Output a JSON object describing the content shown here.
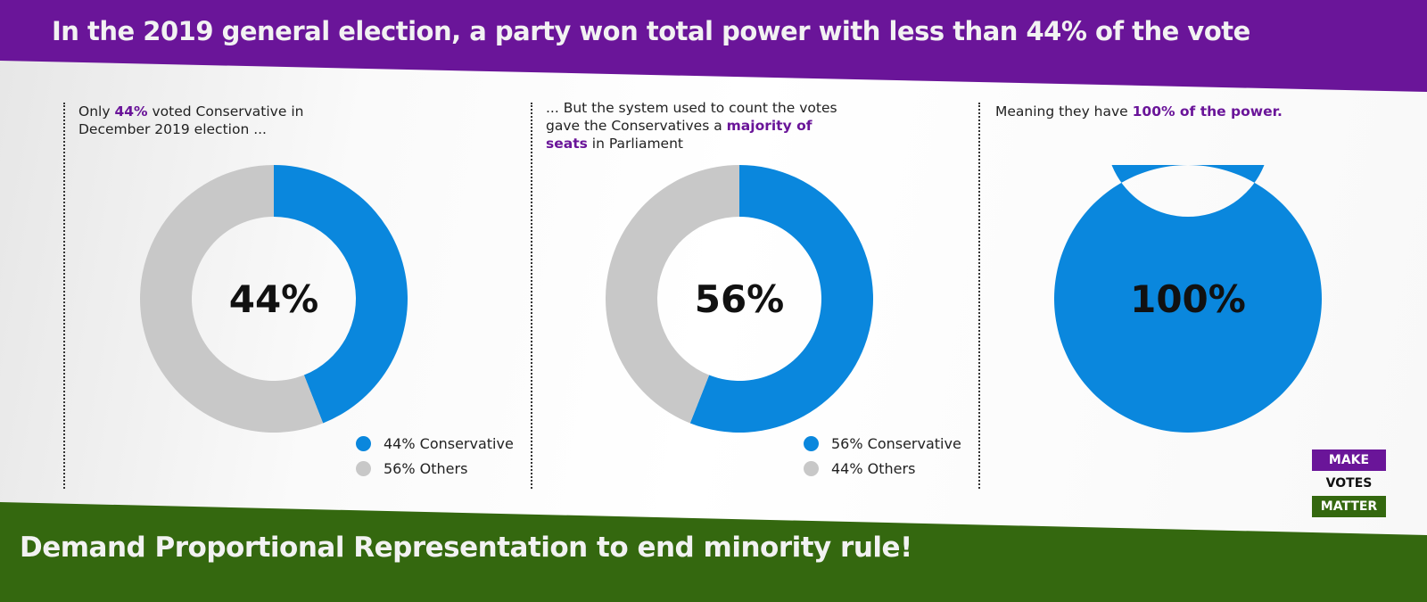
{
  "header": {
    "title": "In the 2019 general election, a party won total power with less than 44% of the vote"
  },
  "footer": {
    "text": "Demand Proportional Representation to end minority rule!"
  },
  "colors": {
    "purple": "#6a1599",
    "blue": "#0a87dd",
    "gray": "#c8c8c8",
    "green": "#34680f"
  },
  "panels": [
    {
      "caption_pre": "Only ",
      "caption_bold": "44%",
      "caption_post": " voted Conservative in December 2019 election ...",
      "center_label": "44%",
      "legend": [
        "44% Conservative",
        "56% Others"
      ]
    },
    {
      "caption_pre": "... But the system used to count the votes gave the Conservatives a ",
      "caption_bold": "majority of seats",
      "caption_post": " in Parliament",
      "center_label": "56%",
      "legend": [
        "56% Conservative",
        "44% Others"
      ]
    },
    {
      "caption_pre": "Meaning they have ",
      "caption_bold": "100% of the power.",
      "caption_post": "",
      "center_label": "100%",
      "legend": []
    }
  ],
  "chart_data": [
    {
      "type": "pie",
      "variant": "donut",
      "center_label": "44%",
      "categories": [
        "Conservative",
        "Others"
      ],
      "values": [
        44,
        56
      ],
      "colors": [
        "#0a87dd",
        "#c8c8c8"
      ],
      "legend": "bottom-right"
    },
    {
      "type": "pie",
      "variant": "donut",
      "center_label": "56%",
      "categories": [
        "Conservative",
        "Others"
      ],
      "values": [
        56,
        44
      ],
      "colors": [
        "#0a87dd",
        "#c8c8c8"
      ],
      "legend": "bottom-right"
    },
    {
      "type": "pie",
      "variant": "donut",
      "center_label": "100%",
      "categories": [
        "Conservative"
      ],
      "values": [
        100
      ],
      "colors": [
        "#0a87dd"
      ]
    }
  ],
  "logo": {
    "line1": "MAKE",
    "line2": "VOTES",
    "line3": "MATTER"
  }
}
